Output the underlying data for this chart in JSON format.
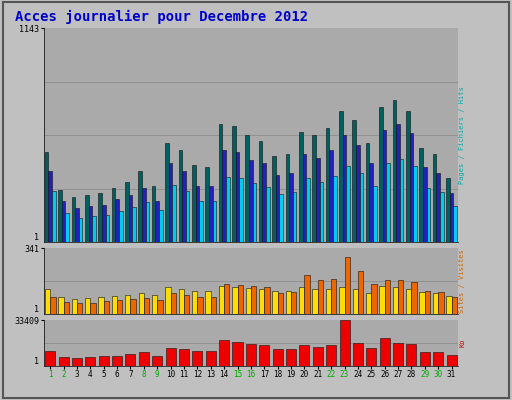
{
  "title": "Acces journalier pour Decembre 2012",
  "days": [
    1,
    2,
    3,
    4,
    5,
    6,
    7,
    8,
    9,
    10,
    11,
    12,
    13,
    14,
    15,
    16,
    17,
    18,
    19,
    20,
    21,
    22,
    23,
    24,
    25,
    26,
    27,
    28,
    29,
    30,
    31
  ],
  "weekend_days": [
    1,
    2,
    8,
    9,
    15,
    16,
    22,
    23,
    29,
    30
  ],
  "hits": [
    480,
    280,
    240,
    250,
    260,
    290,
    320,
    380,
    300,
    530,
    490,
    410,
    400,
    630,
    620,
    570,
    540,
    460,
    470,
    590,
    570,
    610,
    700,
    650,
    530,
    720,
    760,
    700,
    500,
    470,
    340
  ],
  "fichiers": [
    380,
    220,
    180,
    190,
    200,
    230,
    250,
    290,
    220,
    420,
    380,
    300,
    300,
    490,
    480,
    440,
    420,
    360,
    370,
    470,
    450,
    490,
    570,
    520,
    420,
    600,
    630,
    580,
    400,
    370,
    260
  ],
  "pages": [
    270,
    155,
    130,
    138,
    145,
    165,
    185,
    215,
    170,
    305,
    275,
    220,
    220,
    345,
    340,
    315,
    295,
    255,
    265,
    340,
    320,
    350,
    405,
    370,
    300,
    420,
    445,
    405,
    290,
    265,
    190
  ],
  "visites_yellow": [
    130,
    90,
    80,
    82,
    90,
    95,
    100,
    110,
    100,
    140,
    130,
    120,
    120,
    145,
    140,
    135,
    130,
    120,
    120,
    140,
    130,
    130,
    140,
    130,
    110,
    145,
    140,
    130,
    115,
    110,
    95
  ],
  "visites_orange": [
    90,
    60,
    55,
    58,
    65,
    72,
    75,
    85,
    70,
    110,
    100,
    88,
    88,
    155,
    150,
    145,
    140,
    110,
    115,
    200,
    175,
    180,
    295,
    220,
    155,
    175,
    175,
    165,
    120,
    115,
    90
  ],
  "ko": [
    11000,
    6500,
    5800,
    6200,
    7000,
    7500,
    9000,
    10000,
    7500,
    13000,
    12000,
    11000,
    11000,
    19000,
    17500,
    16000,
    15000,
    12000,
    12500,
    15000,
    14000,
    15000,
    33409,
    17000,
    13000,
    20000,
    17000,
    16000,
    10500,
    10500,
    8000
  ],
  "hits_color": "#006060",
  "fichiers_color": "#2222bb",
  "pages_color": "#00ccee",
  "visites_yellow_color": "#ffdd00",
  "visites_orange_color": "#ee6600",
  "ko_color": "#ee0000",
  "bg_color": "#c0c0c0",
  "panel_bg": "#aaaaaa",
  "grid_color": "#888888",
  "title_color": "#0000cc",
  "axis_label_color_top": "#00aaaa",
  "axis_label_color_mid": "#cc6600",
  "axis_label_color_bot": "#cc0000",
  "weekend_color": "#00aa00",
  "weekday_color": "#000000",
  "hits_max": 1143,
  "visites_max": 341,
  "ko_max": 33409
}
